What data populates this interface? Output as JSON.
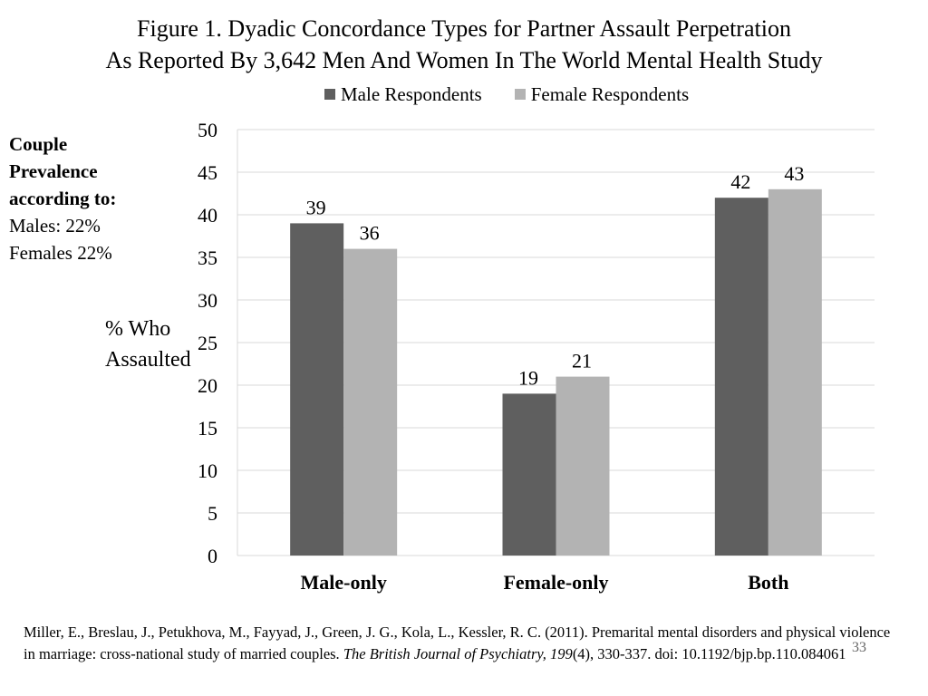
{
  "title_line1": "Figure 1.  Dyadic Concordance Types for Partner Assault Perpetration",
  "title_line2": "As Reported By 3,642 Men And Women In The World Mental Health Study",
  "note": {
    "line1": "Couple",
    "line2": "Prevalence",
    "line3": "according to:",
    "line4": "Males: 22%",
    "line5": "Females 22%"
  },
  "ylabel_line1": "% Who",
  "ylabel_line2": "Assaulted",
  "citation": {
    "text1": "Miller, E., Breslau, J., Petukhova, M., Fayyad, J., Green, J. G., Kola, L., Kessler, R. C. (2011). Premarital mental disorders and physical violence in marriage: cross-national study of married couples. ",
    "journal": "The British Journal of Psychiatry, 199",
    "text2": "(4), 330-337. doi: 10.1192/bjp.bp.110.084061"
  },
  "slide_number": "33",
  "chart_data": {
    "type": "bar",
    "categories": [
      "Male-only",
      "Female-only",
      "Both"
    ],
    "series": [
      {
        "name": "Male Respondents",
        "values": [
          39,
          19,
          42
        ],
        "color": "#5f5f5f"
      },
      {
        "name": "Female Respondents",
        "values": [
          36,
          21,
          43
        ],
        "color": "#b3b3b3"
      }
    ],
    "ylim": [
      0,
      50
    ],
    "yticks": [
      0,
      5,
      10,
      15,
      20,
      25,
      30,
      35,
      40,
      45,
      50
    ],
    "grid": true,
    "legend_position": "top",
    "data_labels": true
  }
}
